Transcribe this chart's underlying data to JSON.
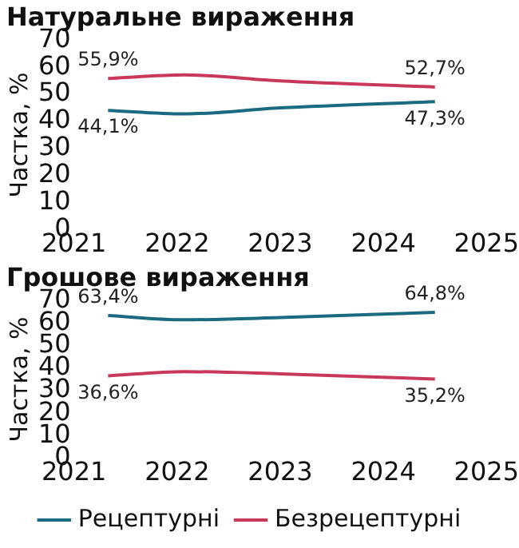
{
  "chart_data": [
    {
      "type": "line",
      "title": "Натуральне вираження",
      "ylabel": "Частка, %",
      "x": [
        2021.33,
        2022.07,
        2023.0,
        2024.5
      ],
      "xlim": [
        2021,
        2025
      ],
      "xticks": [
        2021,
        2022,
        2023,
        2024,
        2025
      ],
      "ylim": [
        0,
        70
      ],
      "yticks": [
        0,
        10,
        20,
        30,
        40,
        50,
        60,
        70
      ],
      "grid": false,
      "legend": false,
      "marker": "none",
      "series": [
        {
          "color": "#1a6b80",
          "values": [
            44.1,
            42.8,
            45,
            47.3
          ],
          "value_labels": [
            "44,1%",
            null,
            null,
            "47,3%"
          ]
        },
        {
          "color": "#c8385a",
          "values": [
            55.9,
            57.2,
            55,
            52.7
          ],
          "value_labels": [
            "55,9%",
            null,
            null,
            "52,7%"
          ]
        }
      ]
    },
    {
      "type": "line",
      "title": "Грошове вираження",
      "ylabel": "Частка, %",
      "x": [
        2021.33,
        2022.07,
        2023.0,
        2024.5
      ],
      "xlim": [
        2021,
        2025
      ],
      "xticks": [
        2021,
        2022,
        2023,
        2024,
        2025
      ],
      "ylim": [
        0,
        70
      ],
      "yticks": [
        0,
        10,
        20,
        30,
        40,
        50,
        60,
        70
      ],
      "grid": false,
      "legend": "bottom",
      "marker": "none",
      "series": [
        {
          "name": "Рецептурні",
          "color": "#1a6b80",
          "values": [
            63.4,
            61.5,
            62.5,
            64.8
          ],
          "value_labels": [
            "63,4%",
            null,
            null,
            "64,8%"
          ]
        },
        {
          "name": "Безрецептурні",
          "color": "#c8385a",
          "values": [
            36.6,
            38.5,
            37.5,
            35.2
          ],
          "value_labels": [
            "36,6%",
            null,
            null,
            "35,2%"
          ]
        }
      ]
    }
  ]
}
